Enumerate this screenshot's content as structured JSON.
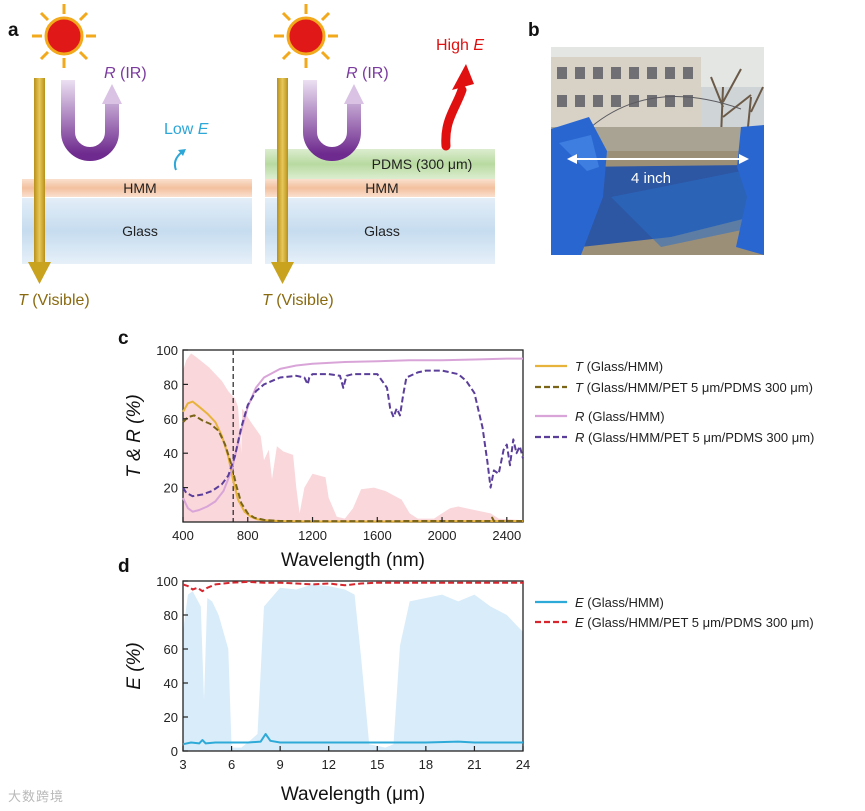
{
  "panels": {
    "a": "a",
    "b": "b",
    "c": "c",
    "d": "d"
  },
  "schematic": {
    "left": {
      "R": "R",
      "R_suffix": " (IR)",
      "low": "Low ",
      "E": "E",
      "hmm": "HMM",
      "glass": "Glass",
      "T": "T",
      "T_suffix": " (Visible)"
    },
    "right": {
      "R": "R",
      "R_suffix": " (IR)",
      "high": "High ",
      "E": "E",
      "pdms": "PDMS (300 μm)",
      "hmm": "HMM",
      "glass": "Glass",
      "T": "T",
      "T_suffix": " (Visible)"
    }
  },
  "photo": {
    "label": "4 inch"
  },
  "colors": {
    "T_glass": "#e8b33a",
    "T_pdms": "#7a6418",
    "R_glass": "#d9a5d8",
    "R_pdms": "#5a3e9a",
    "E_glass": "#2eaad8",
    "E_pdms": "#d7262e",
    "solar_fill": "#f6c6cc",
    "atm_fill": "#c9e4f6",
    "sun": "#e01818",
    "sun_rays": "#f2a91c",
    "arrow_T": "#c9a21e",
    "arrow_R": "#8a4fb0",
    "hmm_layer": "#f3c09e",
    "glass_layer": "#c6dcef",
    "pdms_layer": "#b8daa0",
    "high_E": "#e11010",
    "low_E": "#2da6d8"
  },
  "chart_data": [
    {
      "type": "line",
      "xlabel": "Wavelength (nm)",
      "ylabel": "T & R (%)",
      "xlim": [
        400,
        2500
      ],
      "ylim": [
        0,
        100
      ],
      "xticks": [
        400,
        800,
        1200,
        1600,
        2000,
        2400
      ],
      "yticks": [
        20,
        40,
        60,
        80,
        100
      ],
      "vline_x": 710,
      "legend_position": "right",
      "series": [
        {
          "name": "T (Glass/HMM)",
          "prefix": "T",
          "suffix": " (Glass/HMM)",
          "color": "#e8b33a",
          "dash": false,
          "x": [
            400,
            430,
            460,
            500,
            550,
            600,
            640,
            680,
            710,
            740,
            780,
            820,
            860,
            900,
            1000,
            1200,
            1600,
            2000,
            2400,
            2500
          ],
          "y": [
            64,
            69,
            70,
            67,
            63,
            58,
            50,
            38,
            24,
            13,
            6,
            3,
            1.5,
            1,
            0.5,
            0.3,
            0.3,
            0.4,
            0.5,
            0.5
          ]
        },
        {
          "name": "T (Glass/HMM/PET 5 μm/PDMS 300 μm)",
          "prefix": "T",
          "suffix": " (Glass/HMM/PET 5 μm/PDMS 300 μm)",
          "color": "#7a6418",
          "dash": true,
          "x": [
            400,
            430,
            470,
            520,
            570,
            620,
            660,
            700,
            730,
            760,
            800,
            840,
            900,
            1000,
            1200,
            1600,
            2000,
            2300,
            2310,
            2320,
            2400,
            2500
          ],
          "y": [
            58,
            61,
            62,
            59,
            57,
            53,
            45,
            33,
            21,
            11,
            5,
            2.5,
            1.2,
            0.6,
            0.5,
            0.5,
            0.6,
            0.6,
            2.5,
            0.6,
            0.6,
            0.6
          ]
        },
        {
          "name": "R (Glass/HMM)",
          "prefix": "R",
          "suffix": " (Glass/HMM)",
          "color": "#d9a5d8",
          "dash": false,
          "x": [
            400,
            430,
            460,
            500,
            550,
            600,
            650,
            700,
            750,
            800,
            850,
            900,
            1000,
            1100,
            1200,
            1400,
            1600,
            1800,
            2000,
            2200,
            2400,
            2500
          ],
          "y": [
            14,
            8,
            6,
            7,
            9,
            12,
            18,
            30,
            50,
            67,
            78,
            84,
            89,
            91,
            92,
            93,
            93.5,
            94,
            94,
            94.5,
            95,
            95
          ]
        },
        {
          "name": "R (Glass/HMM/PET 5 μm/PDMS 300 μm)",
          "prefix": "R",
          "suffix": " (Glass/HMM/PET 5 μm/PDMS 300 μm)",
          "color": "#5a3e9a",
          "dash": true,
          "x": [
            400,
            420,
            460,
            520,
            580,
            640,
            680,
            720,
            760,
            800,
            850,
            900,
            1000,
            1100,
            1150,
            1170,
            1180,
            1200,
            1300,
            1370,
            1390,
            1410,
            1450,
            1600,
            1660,
            1680,
            1700,
            1720,
            1740,
            1760,
            1780,
            1850,
            1900,
            2000,
            2100,
            2150,
            2200,
            2250,
            2280,
            2300,
            2320,
            2350,
            2380,
            2400,
            2420,
            2440,
            2460,
            2480,
            2500
          ],
          "y": [
            20,
            17,
            15,
            16,
            18,
            22,
            27,
            38,
            55,
            68,
            76,
            80,
            84,
            85,
            84,
            80,
            84,
            86,
            86,
            85,
            78,
            85,
            86,
            86,
            78,
            66,
            61,
            66,
            62,
            74,
            84,
            87,
            88,
            88,
            86,
            82,
            75,
            55,
            35,
            20,
            30,
            28,
            42,
            45,
            33,
            48,
            40,
            44,
            37
          ]
        }
      ],
      "solar_spectrum": {
        "x": [
          400,
          420,
          450,
          480,
          520,
          560,
          600,
          640,
          680,
          720,
          740,
          760,
          765,
          780,
          820,
          880,
          900,
          930,
          950,
          980,
          1020,
          1080,
          1100,
          1120,
          1150,
          1200,
          1280,
          1300,
          1350,
          1400,
          1450,
          1500,
          1580,
          1650,
          1750,
          1800,
          1850,
          1950,
          2000,
          2050,
          2100,
          2200,
          2300,
          2350,
          2500
        ],
        "y": [
          88,
          94,
          98,
          96,
          93,
          90,
          86,
          82,
          76,
          72,
          67,
          40,
          66,
          64,
          58,
          50,
          36,
          42,
          25,
          44,
          41,
          39,
          20,
          5,
          20,
          28,
          26,
          14,
          3,
          2,
          8,
          19,
          20,
          18,
          13,
          5,
          2,
          2,
          5,
          8,
          9,
          7,
          5,
          2,
          1
        ]
      }
    },
    {
      "type": "line",
      "xlabel": "Wavelength (μm)",
      "ylabel": "E (%)",
      "xlim": [
        3,
        24
      ],
      "ylim": [
        0,
        100
      ],
      "xticks": [
        3,
        6,
        9,
        12,
        15,
        18,
        21,
        24
      ],
      "yticks": [
        0,
        20,
        40,
        60,
        80,
        100
      ],
      "legend_position": "right",
      "series": [
        {
          "name": "E (Glass/HMM)",
          "prefix": "E",
          "suffix": " (Glass/HMM)",
          "color": "#2eaad8",
          "dash": false,
          "x": [
            3,
            3.5,
            4,
            4.2,
            4.4,
            5,
            6,
            7,
            7.8,
            8.1,
            8.4,
            9,
            10,
            12,
            14,
            16,
            18,
            20,
            21,
            22,
            23,
            24
          ],
          "y": [
            4,
            5,
            4.5,
            6.5,
            4.5,
            5,
            5,
            5,
            5.5,
            10,
            6,
            5,
            5,
            5,
            5,
            5,
            5,
            5.5,
            5,
            5,
            5,
            5
          ]
        },
        {
          "name": "E (Glass/HMM/PET 5 μm/PDMS 300 μm)",
          "prefix": "E",
          "suffix": " (Glass/HMM/PET 5 μm/PDMS 300 μm)",
          "color": "#d7262e",
          "dash": true,
          "x": [
            3,
            3.3,
            3.6,
            3.9,
            4.2,
            4.5,
            5,
            6,
            7,
            8,
            9,
            10,
            11,
            12,
            13,
            14,
            15,
            16,
            18,
            20,
            22,
            24
          ],
          "y": [
            98,
            97,
            95,
            96,
            94,
            96,
            98,
            99,
            99.5,
            99,
            99,
            98.5,
            98,
            98.5,
            97.5,
            98.5,
            99,
            99,
            99,
            99,
            99,
            99
          ]
        }
      ],
      "atmospheric_window": {
        "x": [
          3,
          3.3,
          3.6,
          4.1,
          4.3,
          4.5,
          4.8,
          5.2,
          5.8,
          6.0,
          6.6,
          7.0,
          7.6,
          8,
          9,
          10,
          11,
          12,
          13,
          13.6,
          14,
          14.5,
          15,
          15.5,
          16,
          16.4,
          17,
          18,
          19,
          20,
          21,
          22,
          23,
          24
        ],
        "y": [
          70,
          92,
          94,
          85,
          30,
          90,
          88,
          80,
          60,
          2,
          2,
          5,
          10,
          85,
          96,
          95,
          98,
          97,
          95,
          92,
          55,
          4,
          3,
          2,
          4,
          62,
          88,
          90,
          92,
          88,
          92,
          85,
          80,
          70
        ]
      }
    }
  ]
}
